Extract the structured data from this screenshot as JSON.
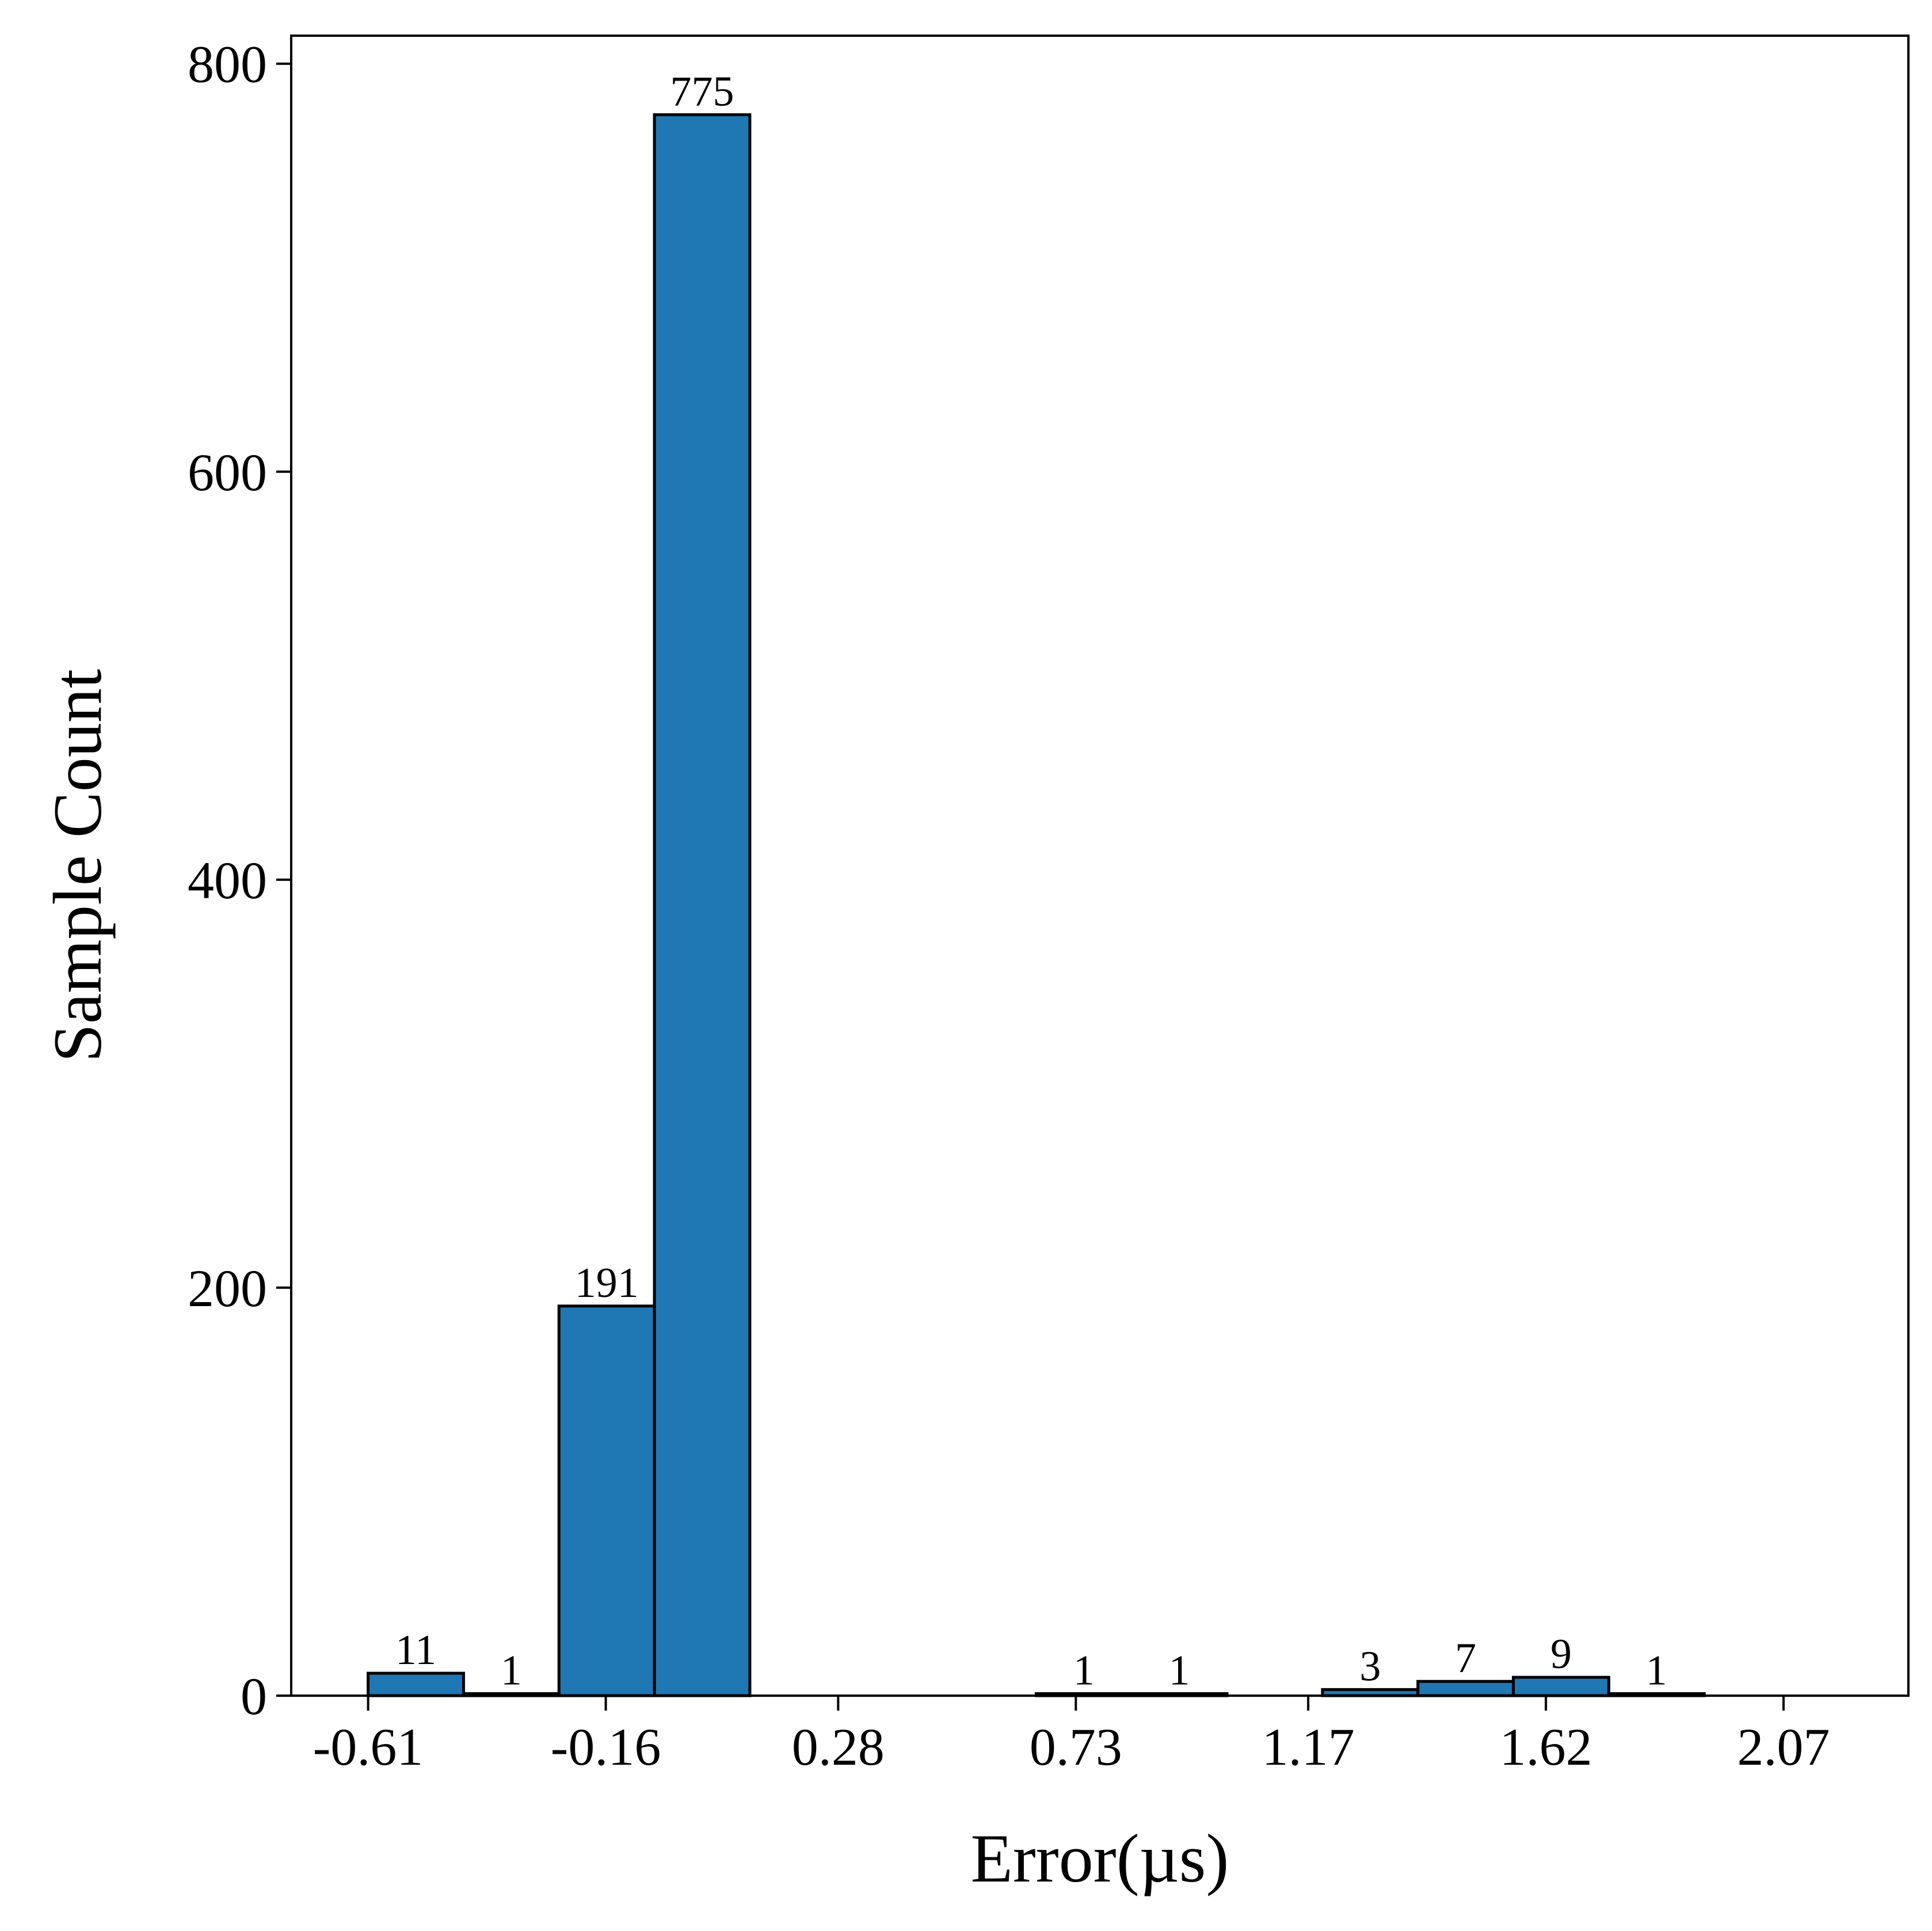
{
  "chart_data": {
    "type": "bar",
    "title": "",
    "xlabel": "Error(µs)",
    "ylabel": "Sample Count",
    "bin_width": 0.1807,
    "bins": [
      {
        "start": -0.61,
        "end": -0.4293,
        "count": 11,
        "label": "11"
      },
      {
        "start": -0.4293,
        "end": -0.2486,
        "count": 1,
        "label": "1"
      },
      {
        "start": -0.2486,
        "end": -0.0679,
        "count": 191,
        "label": "191"
      },
      {
        "start": -0.0679,
        "end": 0.1128,
        "count": 775,
        "label": "775"
      },
      {
        "start": 0.1128,
        "end": 0.2935,
        "count": 0,
        "label": ""
      },
      {
        "start": 0.2935,
        "end": 0.4742,
        "count": 0,
        "label": ""
      },
      {
        "start": 0.4742,
        "end": 0.6549,
        "count": 0,
        "label": ""
      },
      {
        "start": 0.6549,
        "end": 0.8356,
        "count": 1,
        "label": "1"
      },
      {
        "start": 0.8356,
        "end": 1.0163,
        "count": 1,
        "label": "1"
      },
      {
        "start": 1.0163,
        "end": 1.197,
        "count": 0,
        "label": ""
      },
      {
        "start": 1.197,
        "end": 1.3777,
        "count": 3,
        "label": "3"
      },
      {
        "start": 1.3777,
        "end": 1.5584,
        "count": 7,
        "label": "7"
      },
      {
        "start": 1.5584,
        "end": 1.7391,
        "count": 9,
        "label": "9"
      },
      {
        "start": 1.7391,
        "end": 1.9198,
        "count": 1,
        "label": "1"
      }
    ],
    "x_ticks": [
      {
        "value": -0.61,
        "label": "-0.61"
      },
      {
        "value": -0.16,
        "label": "-0.16"
      },
      {
        "value": 0.28,
        "label": "0.28"
      },
      {
        "value": 0.73,
        "label": "0.73"
      },
      {
        "value": 1.17,
        "label": "1.17"
      },
      {
        "value": 1.62,
        "label": "1.62"
      },
      {
        "value": 2.07,
        "label": "2.07"
      }
    ],
    "y_ticks": [
      {
        "value": 0,
        "label": "0"
      },
      {
        "value": 200,
        "label": "200"
      },
      {
        "value": 400,
        "label": "400"
      },
      {
        "value": 600,
        "label": "600"
      },
      {
        "value": 800,
        "label": "800"
      }
    ],
    "xlim": [
      -0.7556,
      2.3064
    ],
    "ylim": [
      0,
      813.75
    ],
    "grid": false,
    "bar_color": "#1f77b4",
    "edge_color": "#000000"
  }
}
